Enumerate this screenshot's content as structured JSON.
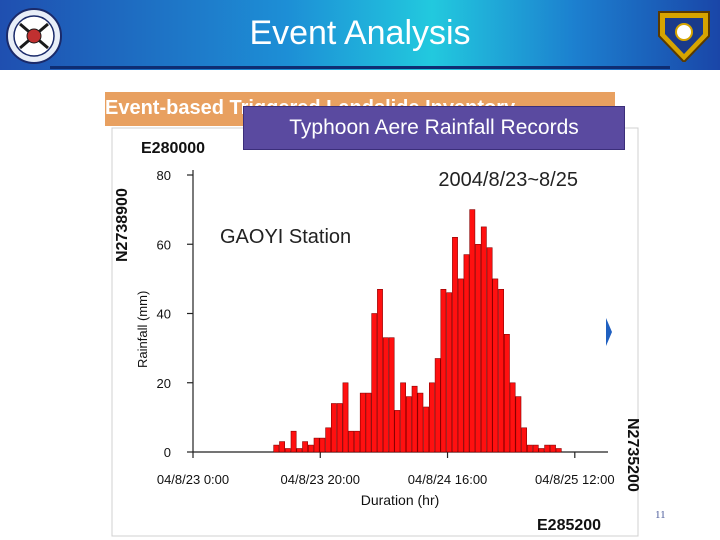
{
  "slide": {
    "title": "Event Analysis",
    "subtitle": "Event-based Triggered Landslide Inventory",
    "popup_title": "Typhoon Aere Rainfall Records",
    "page_number": "11",
    "colors": {
      "header_start": "#1f4fb0",
      "header_mid": "#22c9de",
      "bar_fill": "#ff1010",
      "bar_stroke": "#8a0000",
      "popup_bg": "#5a4aa0"
    }
  },
  "map_labels": {
    "top_left": "E280000",
    "left_vertical": "N2738900",
    "right_vertical": "N2735200",
    "bottom_right": "E285200"
  },
  "chart_data": {
    "type": "bar",
    "title": "2004/8/23~8/25",
    "station": "GAOYI Station",
    "xlabel": "Duration (hr)",
    "ylabel": "Rainfall (mm)",
    "ylim": [
      0,
      80
    ],
    "yticks": [
      "0",
      "20",
      "40",
      "60",
      "80"
    ],
    "x_tick_labels": [
      "04/8/23 0:00",
      "04/8/23 20:00",
      "04/8/24 16:00",
      "04/8/25 12:00"
    ],
    "x_tick_hours": [
      0,
      20,
      40,
      60
    ],
    "hours_start": 14,
    "values": [
      2,
      3,
      1,
      6,
      1,
      3,
      2,
      4,
      4,
      7,
      14,
      14,
      20,
      6,
      6,
      17,
      17,
      40,
      47,
      33,
      33,
      12,
      20,
      16,
      19,
      17,
      13,
      20,
      27,
      47,
      46,
      62,
      50,
      57,
      70,
      60,
      65,
      59,
      50,
      47,
      34,
      20,
      16,
      7,
      2,
      2,
      1,
      2,
      2,
      1
    ]
  }
}
